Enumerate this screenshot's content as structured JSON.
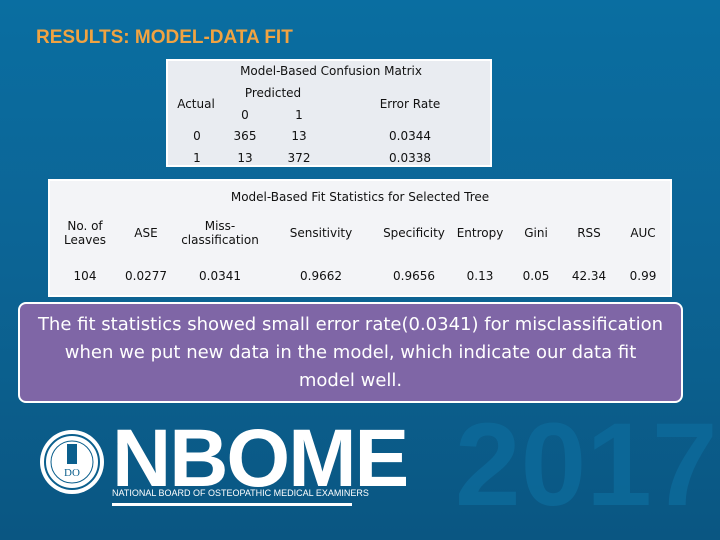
{
  "slide": {
    "title": "RESULTS: MODEL-DATA FIT",
    "callout_text": "The fit statistics showed small error rate(0.0341) for misclassification when we put new data in the model, which indicate our data  fit model well."
  },
  "confusion_matrix": {
    "title": "Model-Based Confusion Matrix",
    "predicted_label": "Predicted",
    "actual_label": "Actual",
    "error_rate_label": "Error Rate",
    "predicted_classes": [
      "0",
      "1"
    ],
    "rows": [
      {
        "actual": "0",
        "values": [
          "365",
          "13"
        ],
        "error_rate": "0.0344"
      },
      {
        "actual": "1",
        "values": [
          "13",
          "372"
        ],
        "error_rate": "0.0338"
      }
    ]
  },
  "fit_stats": {
    "title": "Model-Based Fit Statistics for Selected Tree",
    "headers": [
      "No. of Leaves",
      "ASE",
      "Miss-classification",
      "Sensitivity",
      "Specificity",
      "Entropy",
      "Gini",
      "RSS",
      "AUC"
    ],
    "values": [
      "104",
      "0.0277",
      "0.0341",
      "0.9662",
      "0.9656",
      "0.13",
      "0.05",
      "42.34",
      "0.99"
    ]
  },
  "branding": {
    "logo_name": "NBOME",
    "logo_subtitle": "NATIONAL BOARD OF OSTEOPATHIC MEDICAL EXAMINERS",
    "emblem_text": "DO",
    "year": "2017"
  },
  "colors": {
    "title": "#f1a341",
    "background": "#0a6ea1",
    "callout": "#7f66a6"
  }
}
